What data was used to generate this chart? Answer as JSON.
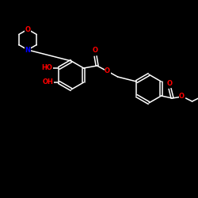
{
  "background_color": "#000000",
  "bond_color": "#ffffff",
  "atom_colors": {
    "O": "#ff0000",
    "N": "#0000ff",
    "C": "#ffffff"
  },
  "figsize": [
    2.5,
    2.5
  ],
  "dpi": 100,
  "line_width": 1.1,
  "font_size": 6.0
}
